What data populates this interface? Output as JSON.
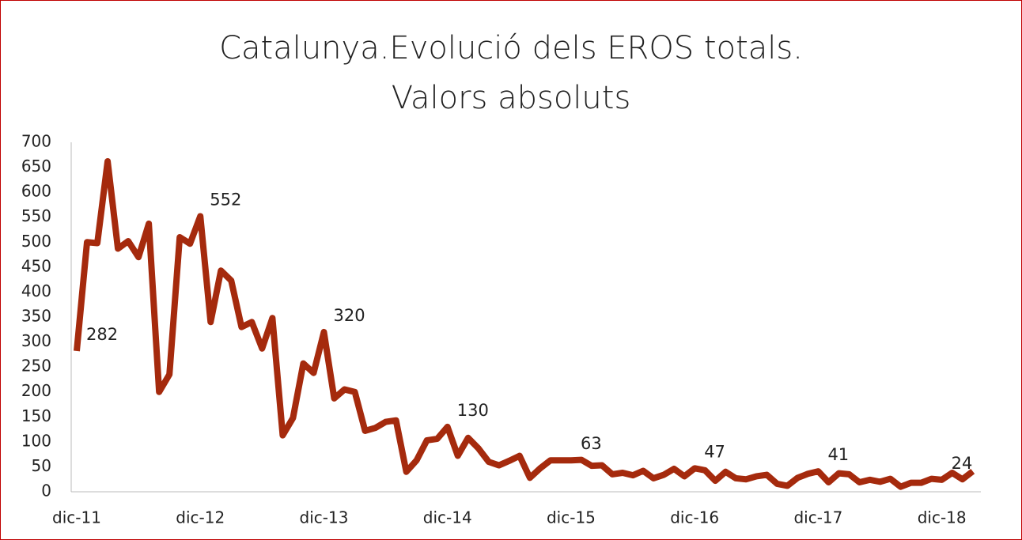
{
  "chart_data": {
    "type": "line",
    "title": "Catalunya.Evolució dels EROS totals. Valors absoluts",
    "categories": [
      "dic-11",
      null,
      null,
      null,
      null,
      null,
      null,
      null,
      null,
      null,
      null,
      null,
      "dic-12",
      null,
      null,
      null,
      null,
      null,
      null,
      null,
      null,
      null,
      null,
      null,
      "dic-13",
      null,
      null,
      null,
      null,
      null,
      null,
      null,
      null,
      null,
      null,
      null,
      "dic-14",
      null,
      null,
      null,
      null,
      null,
      null,
      null,
      null,
      null,
      null,
      null,
      "dic-15",
      null,
      null,
      null,
      null,
      null,
      null,
      null,
      null,
      null,
      null,
      null,
      "dic-16",
      null,
      null,
      null,
      null,
      null,
      null,
      null,
      null,
      null,
      null,
      null,
      "dic-17",
      null,
      null,
      null,
      null,
      null,
      null,
      null,
      null,
      null,
      null,
      null,
      "dic-18",
      null,
      null,
      null
    ],
    "series": [
      {
        "name": "EROS",
        "color": "#a52a0d",
        "values": [
          282,
          500,
          498,
          662,
          487,
          502,
          470,
          537,
          200,
          235,
          510,
          497,
          552,
          340,
          443,
          423,
          330,
          340,
          287,
          348,
          113,
          148,
          257,
          238,
          320,
          187,
          205,
          200,
          122,
          128,
          140,
          143,
          40,
          63,
          103,
          106,
          130,
          72,
          108,
          87,
          60,
          53,
          62,
          72,
          28,
          47,
          63,
          63,
          63,
          64,
          52,
          53,
          35,
          38,
          33,
          42,
          27,
          34,
          46,
          31,
          47,
          43,
          22,
          40,
          27,
          25,
          31,
          34,
          16,
          12,
          28,
          36,
          41,
          19,
          37,
          35,
          19,
          24,
          20,
          26,
          10,
          18,
          18,
          26,
          24,
          38,
          25,
          41
        ],
        "value_labels": [
          "282",
          null,
          null,
          null,
          null,
          null,
          null,
          null,
          null,
          null,
          null,
          null,
          "552",
          null,
          null,
          null,
          null,
          null,
          null,
          null,
          null,
          null,
          null,
          null,
          "320",
          null,
          null,
          null,
          null,
          null,
          null,
          null,
          null,
          null,
          null,
          null,
          "130",
          null,
          null,
          null,
          null,
          null,
          null,
          null,
          null,
          null,
          null,
          null,
          "63",
          null,
          null,
          null,
          null,
          null,
          null,
          null,
          null,
          null,
          null,
          null,
          "47",
          null,
          null,
          null,
          null,
          null,
          null,
          null,
          null,
          null,
          null,
          null,
          "41",
          null,
          null,
          null,
          null,
          null,
          null,
          null,
          null,
          null,
          null,
          null,
          "24",
          null,
          null,
          null
        ]
      }
    ],
    "ylim": [
      0,
      700
    ],
    "yticks": [
      0,
      50,
      100,
      150,
      200,
      250,
      300,
      350,
      400,
      450,
      500,
      550,
      600,
      650,
      700
    ],
    "grid": false
  }
}
